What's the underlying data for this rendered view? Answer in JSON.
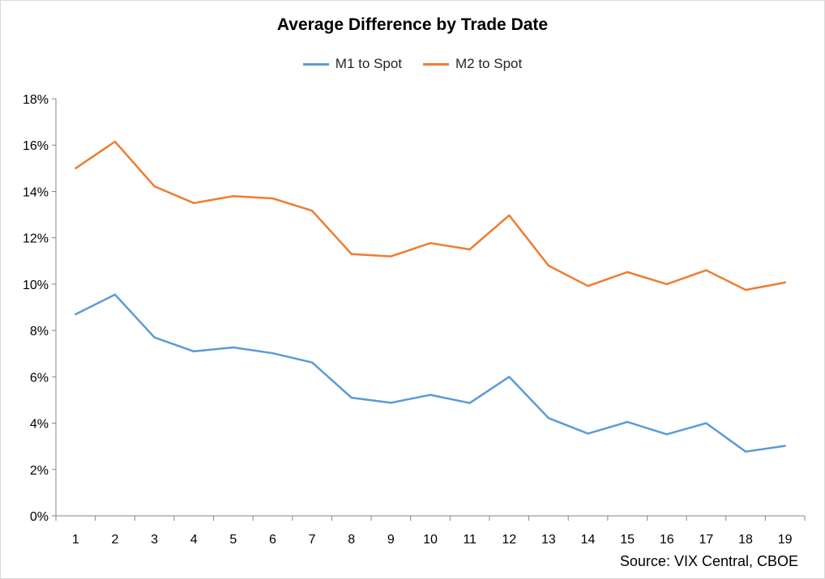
{
  "chart_data": {
    "type": "line",
    "title": "Average Difference by Trade Date",
    "xlabel": "",
    "ylabel": "",
    "categories": [
      "1",
      "2",
      "3",
      "4",
      "5",
      "6",
      "7",
      "8",
      "9",
      "10",
      "11",
      "12",
      "13",
      "14",
      "15",
      "16",
      "17",
      "18",
      "19"
    ],
    "y_ticks": [
      "0%",
      "2%",
      "4%",
      "6%",
      "8%",
      "10%",
      "12%",
      "14%",
      "16%",
      "18%"
    ],
    "ylim": [
      0,
      18
    ],
    "y_unit": "%",
    "grid": false,
    "legend_position": "top",
    "series": [
      {
        "name": "M1 to Spot",
        "color": "#5B9BD5",
        "values": [
          8.7,
          9.55,
          7.7,
          7.1,
          7.27,
          7.02,
          6.62,
          5.1,
          4.88,
          5.22,
          4.87,
          6.0,
          4.22,
          3.55,
          4.05,
          3.52,
          4.0,
          2.77,
          3.02
        ]
      },
      {
        "name": "M2 to Spot",
        "color": "#ED7D31",
        "values": [
          15.0,
          16.15,
          14.22,
          13.5,
          13.8,
          13.7,
          13.17,
          11.3,
          11.2,
          11.77,
          11.5,
          12.97,
          10.8,
          9.92,
          10.52,
          10.0,
          10.6,
          9.75,
          10.07
        ]
      }
    ]
  },
  "source_text": "Source: VIX Central, CBOE"
}
